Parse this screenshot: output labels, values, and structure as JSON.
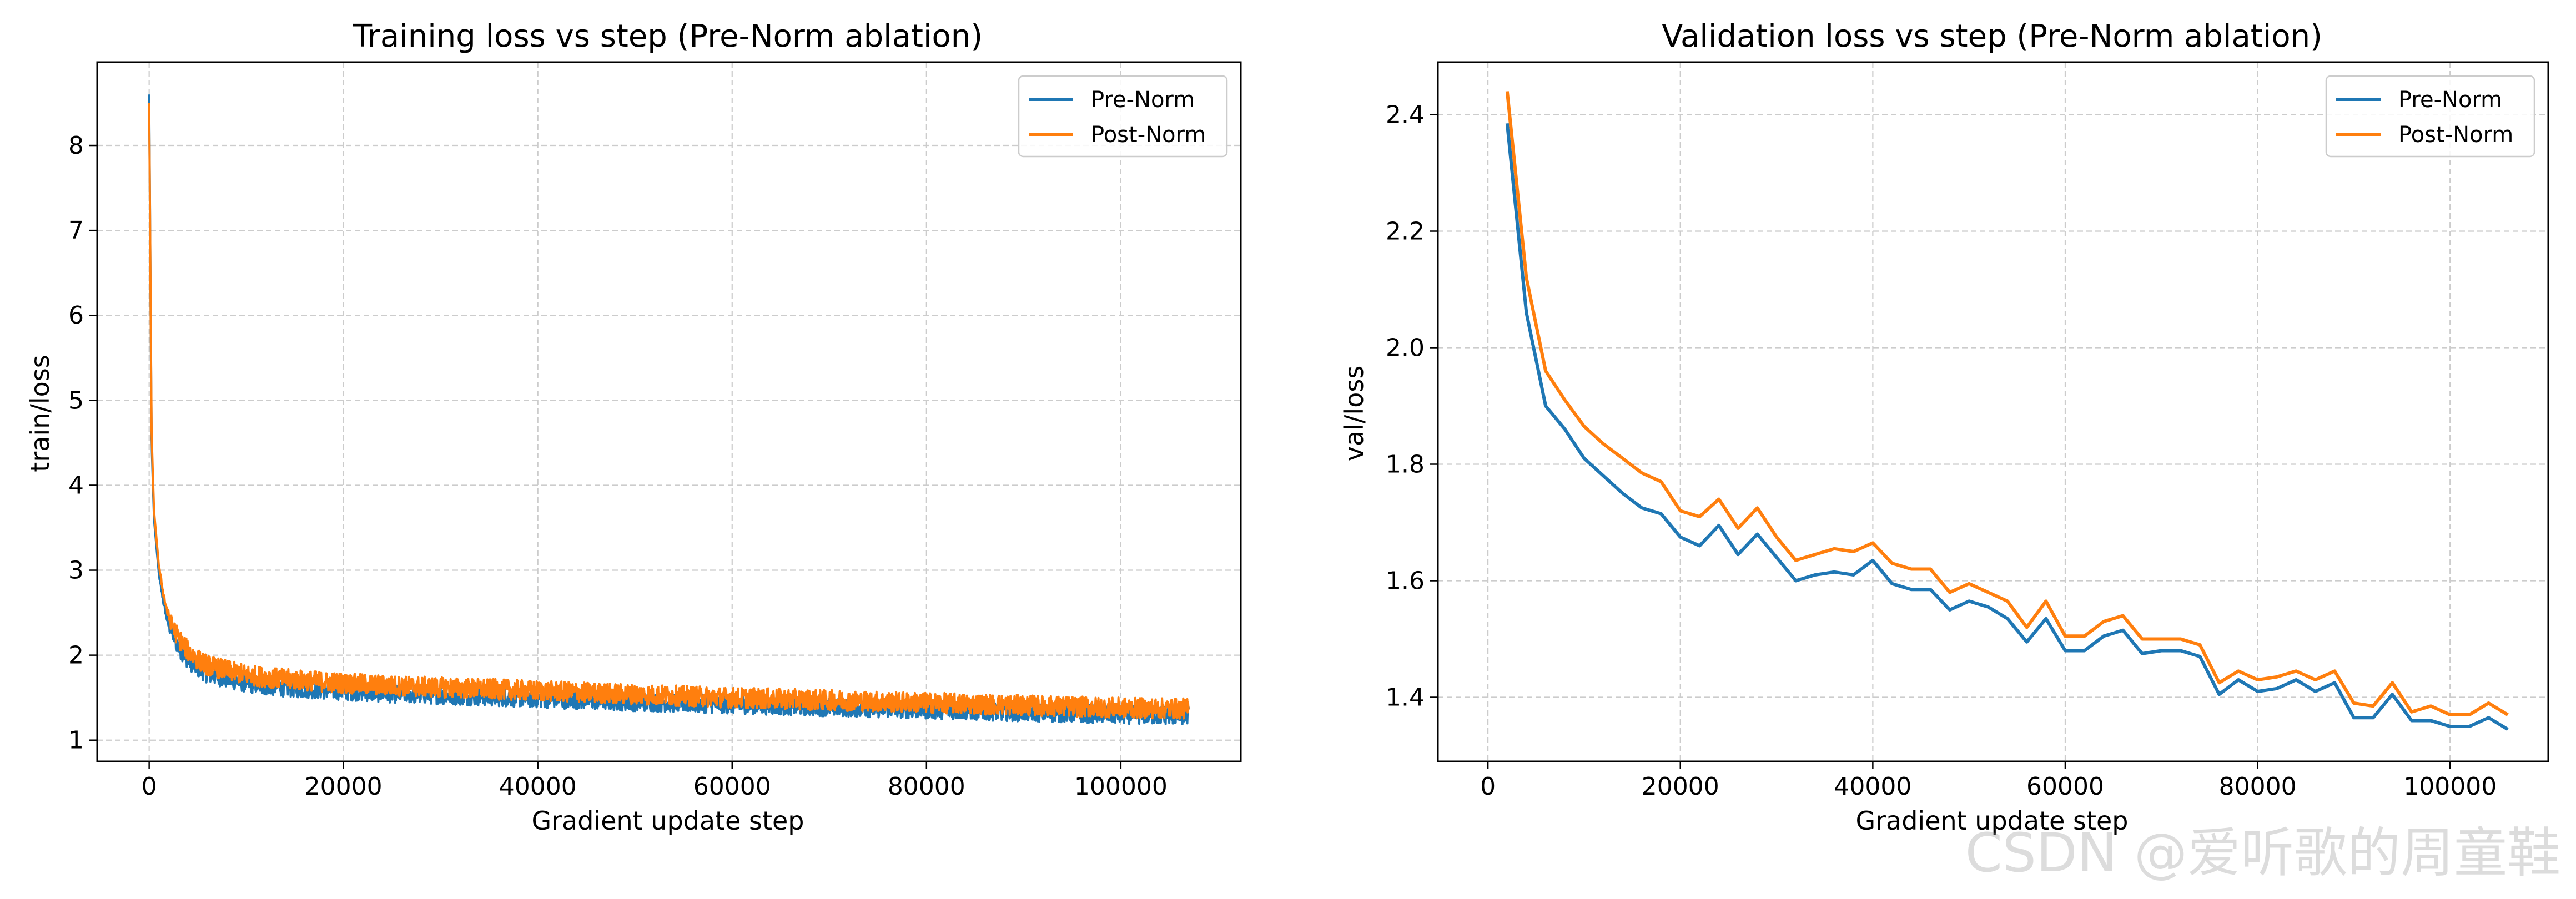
{
  "watermark": "CSDN @爱听歌的周童鞋",
  "chart_data": [
    {
      "type": "line",
      "title": "Training loss vs step (Pre-Norm ablation)",
      "xlabel": "Gradient update step",
      "ylabel": "train/loss",
      "xlim": [
        -5350,
        112350
      ],
      "ylim": [
        0.75,
        8.98
      ],
      "xticks": [
        0,
        20000,
        40000,
        60000,
        80000,
        100000
      ],
      "xtick_labels": [
        "0",
        "20000",
        "40000",
        "60000",
        "80000",
        "100000"
      ],
      "yticks": [
        1,
        2,
        3,
        4,
        5,
        6,
        7,
        8
      ],
      "ytick_labels": [
        "1",
        "2",
        "3",
        "4",
        "5",
        "6",
        "7",
        "8"
      ],
      "grid": true,
      "legend": "top-right",
      "series": [
        {
          "name": "Pre-Norm",
          "color": "#1f77b4",
          "x": [
            0,
            250,
            500,
            1000,
            1500,
            2000,
            3000,
            4000,
            5000,
            6000,
            8000,
            10000,
            12000,
            15000,
            20000,
            25000,
            30000,
            35000,
            40000,
            50000,
            60000,
            70000,
            80000,
            90000,
            100000,
            107000
          ],
          "y": [
            8.6,
            4.5,
            3.6,
            2.95,
            2.6,
            2.35,
            2.1,
            1.95,
            1.85,
            1.78,
            1.72,
            1.67,
            1.64,
            1.61,
            1.58,
            1.55,
            1.53,
            1.51,
            1.49,
            1.45,
            1.42,
            1.39,
            1.36,
            1.33,
            1.3,
            1.29
          ],
          "noise": 0.11
        },
        {
          "name": "Post-Norm",
          "color": "#ff7f0e",
          "x": [
            0,
            250,
            500,
            1000,
            1500,
            2000,
            3000,
            4000,
            5000,
            6000,
            8000,
            10000,
            12000,
            15000,
            20000,
            25000,
            30000,
            35000,
            40000,
            50000,
            60000,
            70000,
            80000,
            90000,
            100000,
            107000
          ],
          "y": [
            8.5,
            4.6,
            3.7,
            3.05,
            2.7,
            2.45,
            2.2,
            2.05,
            1.95,
            1.88,
            1.82,
            1.77,
            1.74,
            1.71,
            1.67,
            1.64,
            1.62,
            1.6,
            1.58,
            1.54,
            1.5,
            1.47,
            1.44,
            1.41,
            1.38,
            1.37
          ],
          "noise": 0.12
        }
      ]
    },
    {
      "type": "line",
      "title": "Validation loss vs step (Pre-Norm ablation)",
      "xlabel": "Gradient update step",
      "ylabel": "val/loss",
      "xlim": [
        -5200,
        110200
      ],
      "ylim": [
        1.29,
        2.49
      ],
      "xticks": [
        0,
        20000,
        40000,
        60000,
        80000,
        100000
      ],
      "xtick_labels": [
        "0",
        "20000",
        "40000",
        "60000",
        "80000",
        "100000"
      ],
      "yticks": [
        1.4,
        1.6,
        1.8,
        2.0,
        2.2,
        2.4
      ],
      "ytick_labels": [
        "1.4",
        "1.6",
        "1.8",
        "2.0",
        "2.2",
        "2.4"
      ],
      "grid": true,
      "legend": "top-right",
      "series": [
        {
          "name": "Pre-Norm",
          "color": "#1f77b4",
          "x": [
            2000,
            4000,
            6000,
            8000,
            10000,
            12000,
            14000,
            16000,
            18000,
            20000,
            22000,
            24000,
            26000,
            28000,
            30000,
            32000,
            34000,
            36000,
            38000,
            40000,
            42000,
            44000,
            46000,
            48000,
            50000,
            52000,
            54000,
            56000,
            58000,
            60000,
            62000,
            64000,
            66000,
            68000,
            70000,
            72000,
            74000,
            76000,
            78000,
            80000,
            82000,
            84000,
            86000,
            88000,
            90000,
            92000,
            94000,
            96000,
            98000,
            100000,
            102000,
            104000,
            106000
          ],
          "y": [
            2.385,
            2.06,
            1.9,
            1.86,
            1.81,
            1.78,
            1.75,
            1.725,
            1.715,
            1.675,
            1.66,
            1.695,
            1.645,
            1.68,
            1.64,
            1.6,
            1.61,
            1.615,
            1.61,
            1.635,
            1.595,
            1.585,
            1.585,
            1.55,
            1.565,
            1.555,
            1.535,
            1.495,
            1.535,
            1.48,
            1.48,
            1.505,
            1.515,
            1.475,
            1.48,
            1.48,
            1.47,
            1.405,
            1.43,
            1.41,
            1.415,
            1.43,
            1.41,
            1.425,
            1.365,
            1.365,
            1.405,
            1.36,
            1.36,
            1.35,
            1.35,
            1.365,
            1.345
          ]
        },
        {
          "name": "Post-Norm",
          "color": "#ff7f0e",
          "x": [
            2000,
            4000,
            6000,
            8000,
            10000,
            12000,
            14000,
            16000,
            18000,
            20000,
            22000,
            24000,
            26000,
            28000,
            30000,
            32000,
            34000,
            36000,
            38000,
            40000,
            42000,
            44000,
            46000,
            48000,
            50000,
            52000,
            54000,
            56000,
            58000,
            60000,
            62000,
            64000,
            66000,
            68000,
            70000,
            72000,
            74000,
            76000,
            78000,
            80000,
            82000,
            84000,
            86000,
            88000,
            90000,
            92000,
            94000,
            96000,
            98000,
            100000,
            102000,
            104000,
            106000
          ],
          "y": [
            2.44,
            2.12,
            1.96,
            1.91,
            1.865,
            1.835,
            1.81,
            1.785,
            1.77,
            1.72,
            1.71,
            1.74,
            1.69,
            1.725,
            1.675,
            1.635,
            1.645,
            1.655,
            1.65,
            1.665,
            1.63,
            1.62,
            1.62,
            1.58,
            1.595,
            1.58,
            1.565,
            1.52,
            1.565,
            1.505,
            1.505,
            1.53,
            1.54,
            1.5,
            1.5,
            1.5,
            1.49,
            1.425,
            1.445,
            1.43,
            1.435,
            1.445,
            1.43,
            1.445,
            1.39,
            1.385,
            1.425,
            1.375,
            1.385,
            1.37,
            1.37,
            1.39,
            1.37
          ]
        }
      ]
    }
  ]
}
